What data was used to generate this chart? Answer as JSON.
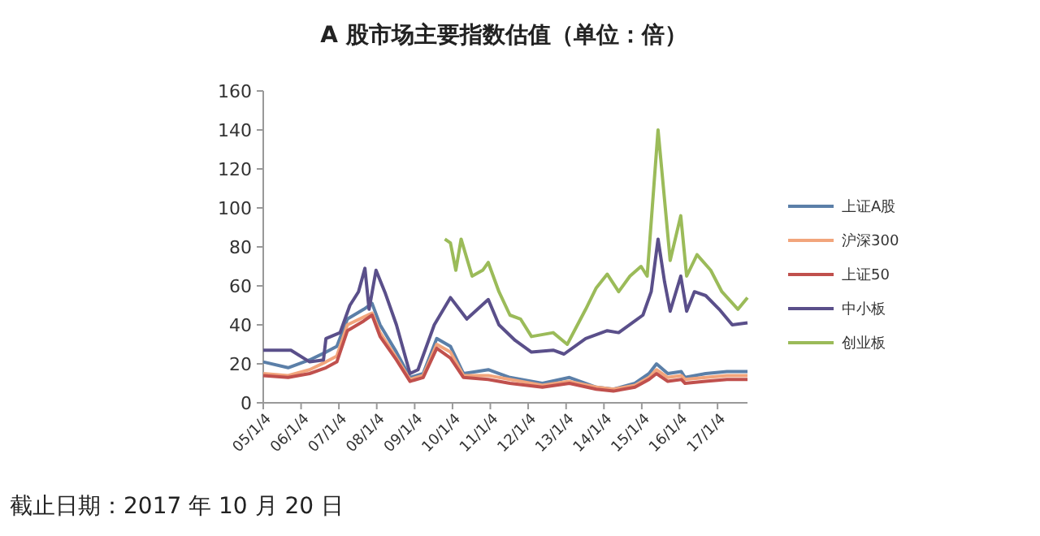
{
  "chart_data": {
    "type": "line",
    "title": "A 股市场主要指数估值（单位：倍）",
    "annotations": [
      "截止日期：2017 年 10 月 20 日"
    ],
    "legend": "right",
    "grid": false,
    "marker": "none",
    "line_style": "solid",
    "x": [
      "2005-01-04",
      "2005-09-01",
      "2006-03-27",
      "2006-09-01",
      "2006-12-15",
      "2007-03-27",
      "2007-09-01",
      "2007-11-20",
      "2008-02-05",
      "2008-07-12",
      "2008-11-20",
      "2009-03-27",
      "2009-08-05",
      "2009-12-15",
      "2010-04-20",
      "2010-12-15",
      "2011-07-12",
      "2012-05-20",
      "2013-02-05",
      "2013-10-22",
      "2014-04-05",
      "2014-10-30",
      "2015-03-15",
      "2015-05-26",
      "2015-09-12",
      "2016-01-20",
      "2016-02-25",
      "2016-09-12",
      "2017-04-05",
      "2017-10-20"
    ],
    "xlim": [
      "2005-01-04",
      "2017-10-20"
    ],
    "xticks": [
      {
        "value": "2005-01-04",
        "label": "05/1/4"
      },
      {
        "value": "2006-01-04",
        "label": "06/1/4"
      },
      {
        "value": "2007-01-04",
        "label": "07/1/4"
      },
      {
        "value": "2008-01-04",
        "label": "08/1/4"
      },
      {
        "value": "2009-01-04",
        "label": "09/1/4"
      },
      {
        "value": "2010-01-04",
        "label": "10/1/4"
      },
      {
        "value": "2011-01-04",
        "label": "11/1/4"
      },
      {
        "value": "2012-01-04",
        "label": "12/1/4"
      },
      {
        "value": "2013-01-04",
        "label": "13/1/4"
      },
      {
        "value": "2014-01-04",
        "label": "14/1/4"
      },
      {
        "value": "2015-01-04",
        "label": "15/1/4"
      },
      {
        "value": "2016-01-04",
        "label": "16/1/4"
      },
      {
        "value": "2017-01-04",
        "label": "17/1/4"
      }
    ],
    "ylim": [
      0,
      160
    ],
    "yticks": [
      0,
      20,
      40,
      60,
      80,
      100,
      120,
      140,
      160
    ],
    "series": [
      {
        "name": "上证A股",
        "color": "#5b7fa8",
        "values": [
          21,
          18,
          22,
          26,
          29,
          43,
          48,
          51,
          40,
          26,
          13,
          15,
          33,
          29,
          15,
          17,
          13,
          10,
          13,
          8,
          7,
          10,
          15,
          20,
          15,
          16,
          13,
          15,
          16,
          16
        ]
      },
      {
        "name": "沪深300",
        "color": "#f2a57c",
        "values": [
          15,
          14,
          17,
          21,
          24,
          40,
          44,
          46,
          36,
          23,
          12,
          14,
          30,
          26,
          14,
          14,
          12,
          9,
          11,
          8,
          7,
          9,
          13,
          17,
          13,
          14,
          12,
          13,
          14,
          14
        ]
      },
      {
        "name": "上证50",
        "color": "#c0504d",
        "values": [
          14,
          13,
          15,
          18,
          21,
          37,
          42,
          45,
          34,
          22,
          11,
          13,
          28,
          23,
          13,
          12,
          10,
          8,
          10,
          7,
          6,
          8,
          12,
          15,
          11,
          12,
          10,
          11,
          12,
          12
        ]
      },
      {
        "name": "中小板",
        "color": "#5a4f8a",
        "x": [
          "2005-01-04",
          "2005-09-28",
          "2006-03-28",
          "2006-08-08",
          "2006-09-01",
          "2007-01-15",
          "2007-04-20",
          "2007-07-12",
          "2007-09-12",
          "2007-10-22",
          "2007-12-28",
          "2008-03-28",
          "2008-07-12",
          "2008-11-20",
          "2009-02-05",
          "2009-07-12",
          "2009-12-15",
          "2010-05-22",
          "2010-12-15",
          "2011-03-28",
          "2011-09-01",
          "2012-02-05",
          "2012-09-01",
          "2012-12-15",
          "2013-07-12",
          "2014-02-05",
          "2014-05-26",
          "2014-10-30",
          "2015-01-15",
          "2015-04-05",
          "2015-06-10",
          "2015-08-12",
          "2015-10-05",
          "2016-01-15",
          "2016-03-12",
          "2016-05-26",
          "2016-09-12",
          "2017-01-20",
          "2017-05-26",
          "2017-10-20"
        ],
        "values": [
          27,
          27,
          21,
          22,
          33,
          36,
          50,
          57,
          69,
          48,
          68,
          56,
          40,
          15,
          17,
          40,
          54,
          43,
          53,
          40,
          32,
          26,
          27,
          25,
          33,
          37,
          36,
          42,
          45,
          57,
          84,
          62,
          47,
          65,
          47,
          57,
          55,
          48,
          40,
          41
        ]
      },
      {
        "name": "创业板",
        "color": "#9bbb59",
        "x": [
          "2009-10-22",
          "2009-12-15",
          "2010-02-05",
          "2010-03-28",
          "2010-07-12",
          "2010-10-22",
          "2010-12-15",
          "2011-03-28",
          "2011-07-12",
          "2011-10-22",
          "2012-02-05",
          "2012-09-01",
          "2013-01-15",
          "2013-07-12",
          "2013-10-22",
          "2014-02-05",
          "2014-05-26",
          "2014-09-12",
          "2014-12-28",
          "2015-02-25",
          "2015-06-10",
          "2015-08-12",
          "2015-10-05",
          "2016-01-15",
          "2016-03-12",
          "2016-06-20",
          "2016-10-30",
          "2017-02-15",
          "2017-07-20",
          "2017-10-20"
        ],
        "values": [
          84,
          82,
          68,
          84,
          65,
          68,
          72,
          57,
          45,
          43,
          34,
          36,
          30,
          48,
          59,
          66,
          57,
          65,
          70,
          65,
          140,
          104,
          73,
          96,
          65,
          76,
          68,
          57,
          48,
          54
        ]
      }
    ]
  }
}
